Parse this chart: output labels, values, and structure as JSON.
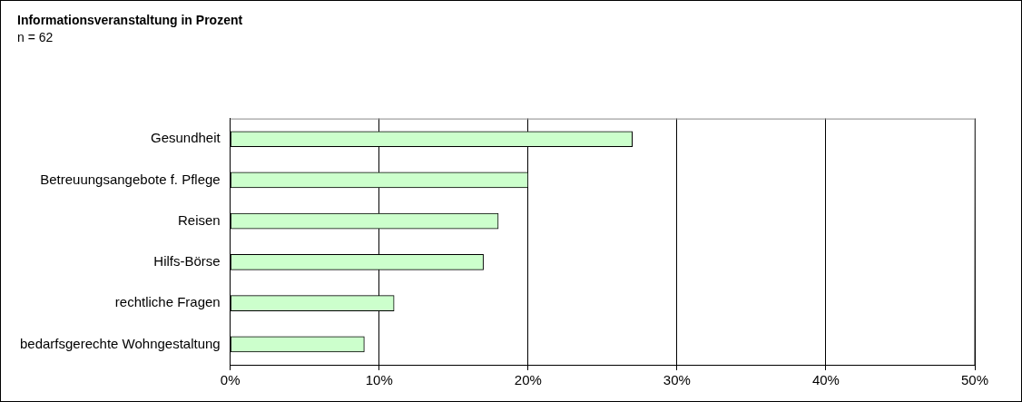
{
  "chart_data": {
    "type": "bar",
    "orientation": "horizontal",
    "title": "Informationsveranstaltung in Prozent",
    "subtitle": "n = 62",
    "categories": [
      "Gesundheit",
      "Betreuungsangebote f. Pflege",
      "Reisen",
      "Hilfs-Börse",
      "rechtliche Fragen",
      "bedarfsgerechte Wohngestaltung"
    ],
    "values": [
      27,
      20,
      18,
      17,
      11,
      9
    ],
    "color": "#ccffcc",
    "xlim": [
      0,
      50
    ],
    "xticks": [
      {
        "value": 0,
        "label": "0%"
      },
      {
        "value": 10,
        "label": "10%"
      },
      {
        "value": 20,
        "label": "20%"
      },
      {
        "value": 30,
        "label": "30%"
      },
      {
        "value": 40,
        "label": "40%"
      },
      {
        "value": 50,
        "label": "50%"
      }
    ],
    "grid": "x",
    "legend": false
  }
}
